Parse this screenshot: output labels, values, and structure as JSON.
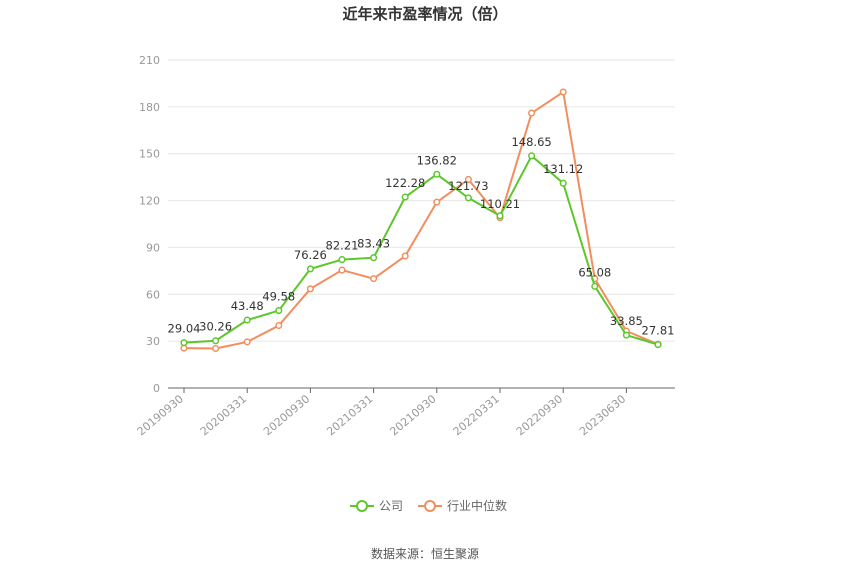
{
  "chart_data": {
    "type": "line",
    "title": "近年来市盈率情况（倍）",
    "source": "数据来源：恒生聚源",
    "ylim": [
      0,
      210
    ],
    "y_ticks": [
      "0",
      "30",
      "60",
      "90",
      "120",
      "150",
      "180",
      "210"
    ],
    "y_tick_values": [
      0,
      30,
      60,
      90,
      120,
      150,
      180,
      210
    ],
    "x_tick_labels": [
      "20190930",
      "20200331",
      "20200930",
      "20210331",
      "20210930",
      "20220331",
      "20220930",
      "20230630"
    ],
    "x_tick_positions": [
      0,
      2,
      4,
      6,
      8,
      10,
      12,
      14
    ],
    "grid": true,
    "legend_position": "bottom",
    "series": [
      {
        "name": "公司",
        "color": "#5cc72b",
        "values": [
          29.04,
          30.26,
          43.48,
          49.58,
          76.26,
          82.21,
          83.43,
          122.28,
          136.82,
          121.73,
          110.21,
          148.65,
          131.12,
          65.08,
          33.85,
          27.81
        ],
        "labels": [
          "29.04",
          "30.26",
          "43.48",
          "49.58",
          "76.26",
          "82.21",
          "83.43",
          "122.28",
          "136.82",
          "121.73",
          "110.21",
          "148.65",
          "131.12",
          "65.08",
          "33.85",
          "27.81"
        ]
      },
      {
        "name": "行业中位数",
        "color": "#f28e5e",
        "values": [
          25.5,
          25.3,
          29.5,
          40,
          63.5,
          75.5,
          70,
          84.5,
          119,
          133.5,
          109,
          176,
          189.5,
          70,
          36.5,
          28
        ]
      }
    ]
  }
}
